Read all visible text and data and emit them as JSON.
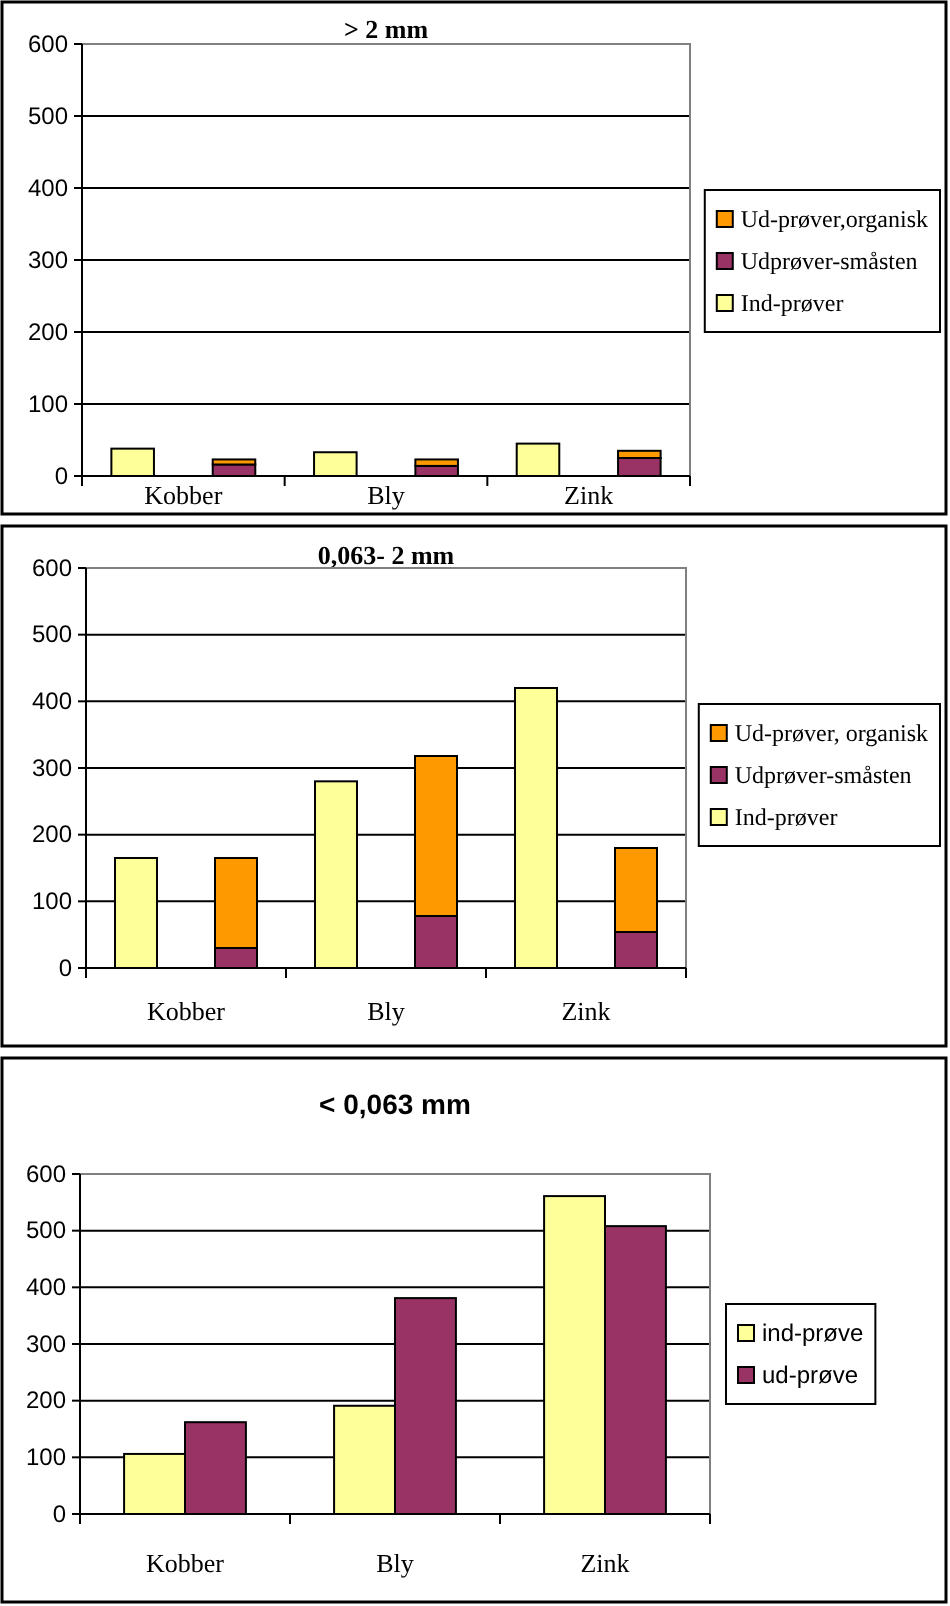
{
  "chart_data": [
    {
      "type": "bar",
      "title": "> 2 mm",
      "stacked": true,
      "categories": [
        "Kobber",
        null,
        "Bly",
        null,
        "Zink",
        null
      ],
      "ylim": [
        0,
        600
      ],
      "yticks": [
        0,
        100,
        200,
        300,
        400,
        500,
        600
      ],
      "grid": "y",
      "legend": "right",
      "series": [
        {
          "name": "Ind-prøver",
          "color": "#ffff99",
          "values": [
            38,
            null,
            33,
            null,
            45,
            null
          ]
        },
        {
          "name": "Udprøver-småsten",
          "color": "#993366",
          "values": [
            null,
            16,
            null,
            14,
            null,
            25
          ]
        },
        {
          "name": "Ud-prøver,organisk",
          "color": "#ff9900",
          "values": [
            null,
            7,
            null,
            9,
            null,
            10
          ]
        }
      ]
    },
    {
      "type": "bar",
      "title": "0,063- 2 mm",
      "stacked": true,
      "categories": [
        "Kobber",
        null,
        "Bly",
        null,
        "Zink",
        null
      ],
      "ylim": [
        0,
        600
      ],
      "yticks": [
        0,
        100,
        200,
        300,
        400,
        500,
        600
      ],
      "grid": "y",
      "legend": "right",
      "series": [
        {
          "name": "Ind-prøver",
          "color": "#ffff99",
          "values": [
            165,
            null,
            280,
            null,
            420,
            null
          ]
        },
        {
          "name": "Udprøver-småsten",
          "color": "#993366",
          "values": [
            null,
            30,
            null,
            78,
            null,
            54
          ]
        },
        {
          "name": "Ud-prøver, organisk",
          "color": "#ff9900",
          "values": [
            null,
            135,
            null,
            240,
            null,
            126
          ]
        }
      ]
    },
    {
      "type": "bar",
      "title": "< 0,063 mm",
      "categories": [
        "Kobber",
        "Bly",
        "Zink"
      ],
      "ylim": [
        0,
        600
      ],
      "yticks": [
        0,
        100,
        200,
        300,
        400,
        500,
        600
      ],
      "grid": "y",
      "legend": "right",
      "series": [
        {
          "name": "ind-prøve",
          "color": "#ffff99",
          "values": [
            106,
            191,
            561
          ]
        },
        {
          "name": "ud-prøve",
          "color": "#993366",
          "values": [
            162,
            381,
            508
          ]
        }
      ]
    }
  ]
}
